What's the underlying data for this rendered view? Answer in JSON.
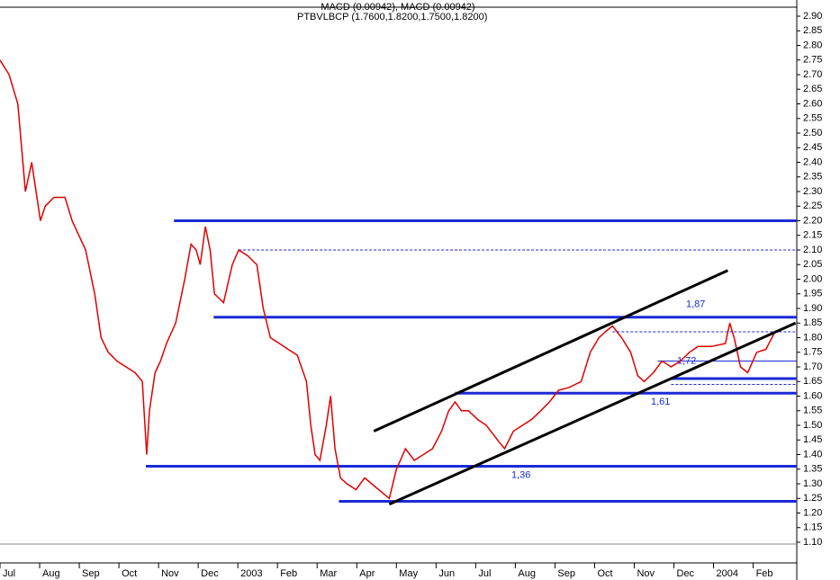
{
  "chart_data": {
    "type": "line",
    "title": "MACD (0.00942), MACD (0.00942)",
    "subtitle": "PTBVLBCP (1.7600,1.8200,1.7500,1.8200)",
    "color": "#e00000",
    "x": [
      0,
      0.23,
      0.45,
      0.64,
      0.8,
      1.02,
      1.14,
      1.36,
      1.64,
      1.82,
      2.16,
      2.39,
      2.55,
      2.73,
      2.95,
      3.18,
      3.41,
      3.59,
      3.7,
      3.77,
      3.91,
      4.05,
      4.2,
      4.43,
      4.66,
      4.82,
      4.95,
      5.05,
      5.18,
      5.3,
      5.41,
      5.64,
      5.86,
      6.02,
      6.25,
      6.48,
      6.64,
      6.82,
      7.05,
      7.27,
      7.5,
      7.73,
      7.84,
      7.95,
      8.07,
      8.23,
      8.34,
      8.45,
      8.59,
      8.75,
      8.98,
      9.2,
      9.55,
      9.82,
      10,
      10.23,
      10.45,
      10.68,
      10.91,
      11.14,
      11.32,
      11.48,
      11.64,
      11.82,
      12.05,
      12.27,
      12.55,
      12.73,
      12.95,
      13.18,
      13.41,
      13.64,
      13.86,
      14.09,
      14.36,
      14.66,
      14.89,
      15.11,
      15.27,
      15.45,
      15.68,
      15.91,
      16.09,
      16.25,
      16.48,
      16.7,
      16.93,
      17.16,
      17.39,
      17.61,
      17.95,
      18.3,
      18.41,
      18.52,
      18.68,
      18.86,
      19.09,
      19.32,
      19.55
    ],
    "values": [
      2.75,
      2.7,
      2.6,
      2.3,
      2.4,
      2.2,
      2.25,
      2.28,
      2.28,
      2.2,
      2.1,
      1.95,
      1.8,
      1.75,
      1.72,
      1.7,
      1.68,
      1.65,
      1.4,
      1.55,
      1.68,
      1.72,
      1.78,
      1.85,
      2.0,
      2.12,
      2.1,
      2.05,
      2.18,
      2.1,
      1.95,
      1.92,
      2.05,
      2.1,
      2.08,
      2.05,
      1.9,
      1.8,
      1.78,
      1.76,
      1.74,
      1.65,
      1.5,
      1.4,
      1.38,
      1.5,
      1.6,
      1.42,
      1.32,
      1.3,
      1.28,
      1.32,
      1.28,
      1.25,
      1.35,
      1.42,
      1.38,
      1.4,
      1.42,
      1.48,
      1.55,
      1.58,
      1.55,
      1.55,
      1.52,
      1.5,
      1.45,
      1.42,
      1.48,
      1.5,
      1.52,
      1.55,
      1.58,
      1.62,
      1.63,
      1.65,
      1.75,
      1.8,
      1.82,
      1.84,
      1.8,
      1.75,
      1.67,
      1.65,
      1.68,
      1.72,
      1.7,
      1.72,
      1.75,
      1.77,
      1.77,
      1.78,
      1.85,
      1.8,
      1.7,
      1.68,
      1.75,
      1.76,
      1.82
    ],
    "xlim": [
      0,
      20.1
    ],
    "xticks": [
      {
        "value": 0,
        "label": "Jul"
      },
      {
        "value": 1,
        "label": "Aug"
      },
      {
        "value": 2,
        "label": "Sep"
      },
      {
        "value": 3,
        "label": "Oct"
      },
      {
        "value": 4,
        "label": "Nov"
      },
      {
        "value": 5,
        "label": "Dec"
      },
      {
        "value": 6,
        "label": "2003"
      },
      {
        "value": 7,
        "label": "Feb"
      },
      {
        "value": 8,
        "label": "Mar"
      },
      {
        "value": 9,
        "label": "Apr"
      },
      {
        "value": 10,
        "label": "May"
      },
      {
        "value": 11,
        "label": "Jun"
      },
      {
        "value": 12,
        "label": "Jul"
      },
      {
        "value": 13,
        "label": "Aug"
      },
      {
        "value": 14,
        "label": "Sep"
      },
      {
        "value": 15,
        "label": "Oct"
      },
      {
        "value": 16,
        "label": "Nov"
      },
      {
        "value": 17,
        "label": "Dec"
      },
      {
        "value": 18,
        "label": "2004"
      },
      {
        "value": 19,
        "label": "Feb"
      }
    ],
    "ylim": [
      0.99,
      2.93
    ],
    "yticks": [
      {
        "value": 1.1,
        "label": "1.10"
      },
      {
        "value": 1.15,
        "label": "1.15"
      },
      {
        "value": 1.2,
        "label": "1.20"
      },
      {
        "value": 1.25,
        "label": "1.25"
      },
      {
        "value": 1.3,
        "label": "1.30"
      },
      {
        "value": 1.35,
        "label": "1.35"
      },
      {
        "value": 1.4,
        "label": "1.40"
      },
      {
        "value": 1.45,
        "label": "1.45"
      },
      {
        "value": 1.5,
        "label": "1.50"
      },
      {
        "value": 1.55,
        "label": "1.55"
      },
      {
        "value": 1.6,
        "label": "1.60"
      },
      {
        "value": 1.65,
        "label": "1.65"
      },
      {
        "value": 1.7,
        "label": "1.70"
      },
      {
        "value": 1.75,
        "label": "1.75"
      },
      {
        "value": 1.8,
        "label": "1.80"
      },
      {
        "value": 1.85,
        "label": "1.85"
      },
      {
        "value": 1.9,
        "label": "1.90"
      },
      {
        "value": 1.95,
        "label": "1.95"
      },
      {
        "value": 2.0,
        "label": "2.00"
      },
      {
        "value": 2.05,
        "label": "2.05"
      },
      {
        "value": 2.1,
        "label": "2.10"
      },
      {
        "value": 2.15,
        "label": "2.15"
      },
      {
        "value": 2.2,
        "label": "2.20"
      },
      {
        "value": 2.25,
        "label": "2.25"
      },
      {
        "value": 2.3,
        "label": "2.30"
      },
      {
        "value": 2.35,
        "label": "2.35"
      },
      {
        "value": 2.4,
        "label": "2.40"
      },
      {
        "value": 2.45,
        "label": "2.45"
      },
      {
        "value": 2.5,
        "label": "2.50"
      },
      {
        "value": 2.55,
        "label": "2.55"
      },
      {
        "value": 2.6,
        "label": "2.60"
      },
      {
        "value": 2.65,
        "label": "2.65"
      },
      {
        "value": 2.7,
        "label": "2.70"
      },
      {
        "value": 2.75,
        "label": "2.75"
      },
      {
        "value": 2.8,
        "label": "2.80"
      },
      {
        "value": 2.85,
        "label": "2.85"
      },
      {
        "value": 2.9,
        "label": "2.90"
      }
    ],
    "hlines": [
      {
        "value": 2.2,
        "from": 4.39,
        "style": "solid"
      },
      {
        "value": 2.1,
        "from": 6.02,
        "style": "dashed"
      },
      {
        "value": 1.87,
        "from": 5.39,
        "style": "solid",
        "label": "1,87"
      },
      {
        "value": 1.82,
        "from": 15.45,
        "style": "dashed"
      },
      {
        "value": 1.72,
        "from": 16.59,
        "style": "thin",
        "label": "1,72"
      },
      {
        "value": 1.66,
        "from": 16.93,
        "style": "solid"
      },
      {
        "value": 1.64,
        "from": 16.93,
        "style": "dashed"
      },
      {
        "value": 1.61,
        "from": 11.48,
        "style": "solid",
        "label": "1,61"
      },
      {
        "value": 1.36,
        "from": 3.68,
        "style": "solid",
        "label": "1,36"
      },
      {
        "value": 1.24,
        "from": 8.55,
        "style": "solid"
      }
    ],
    "trendlines": [
      {
        "x": [
          9.43,
          18.36
        ],
        "y": [
          1.48,
          2.03
        ]
      },
      {
        "x": [
          9.82,
          20.07
        ],
        "y": [
          1.23,
          1.85
        ]
      }
    ]
  }
}
